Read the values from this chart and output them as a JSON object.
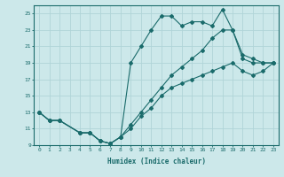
{
  "xlabel": "Humidex (Indice chaleur)",
  "bg_color": "#cce8ea",
  "grid_color": "#b0d4d8",
  "line_color": "#1a6b6b",
  "xlim": [
    -0.5,
    23.5
  ],
  "ylim": [
    9,
    26
  ],
  "xticks": [
    0,
    1,
    2,
    3,
    4,
    5,
    6,
    7,
    8,
    9,
    10,
    11,
    12,
    13,
    14,
    15,
    16,
    17,
    18,
    19,
    20,
    21,
    22,
    23
  ],
  "yticks": [
    9,
    11,
    13,
    15,
    17,
    19,
    21,
    23,
    25
  ],
  "line1_x": [
    0,
    1,
    2,
    4,
    5,
    6,
    7,
    8,
    9,
    10,
    11,
    12,
    13,
    14,
    15,
    16,
    17,
    18,
    19,
    20,
    21,
    22,
    23
  ],
  "line1_y": [
    13,
    12,
    12,
    10.5,
    10.5,
    9.5,
    9.2,
    10,
    19,
    21,
    23,
    24.7,
    24.7,
    23.5,
    24,
    24,
    23.5,
    25.5,
    23,
    19.5,
    19,
    19,
    19
  ],
  "line2_x": [
    0,
    1,
    2,
    4,
    5,
    6,
    7,
    8,
    9,
    10,
    11,
    12,
    13,
    14,
    15,
    16,
    17,
    18,
    19,
    20,
    21,
    22,
    23
  ],
  "line2_y": [
    13,
    12,
    12,
    10.5,
    10.5,
    9.5,
    9.2,
    10,
    11.5,
    13,
    14.5,
    16,
    17.5,
    18.5,
    19.5,
    20.5,
    22,
    23,
    23,
    20,
    19.5,
    19,
    19
  ],
  "line3_x": [
    0,
    1,
    2,
    4,
    5,
    6,
    7,
    8,
    9,
    10,
    11,
    12,
    13,
    14,
    15,
    16,
    17,
    18,
    19,
    20,
    21,
    22,
    23
  ],
  "line3_y": [
    13,
    12,
    12,
    10.5,
    10.5,
    9.5,
    9.2,
    10,
    11,
    12.5,
    13.5,
    15,
    16,
    16.5,
    17,
    17.5,
    18,
    18.5,
    19,
    18,
    17.5,
    18,
    19
  ]
}
